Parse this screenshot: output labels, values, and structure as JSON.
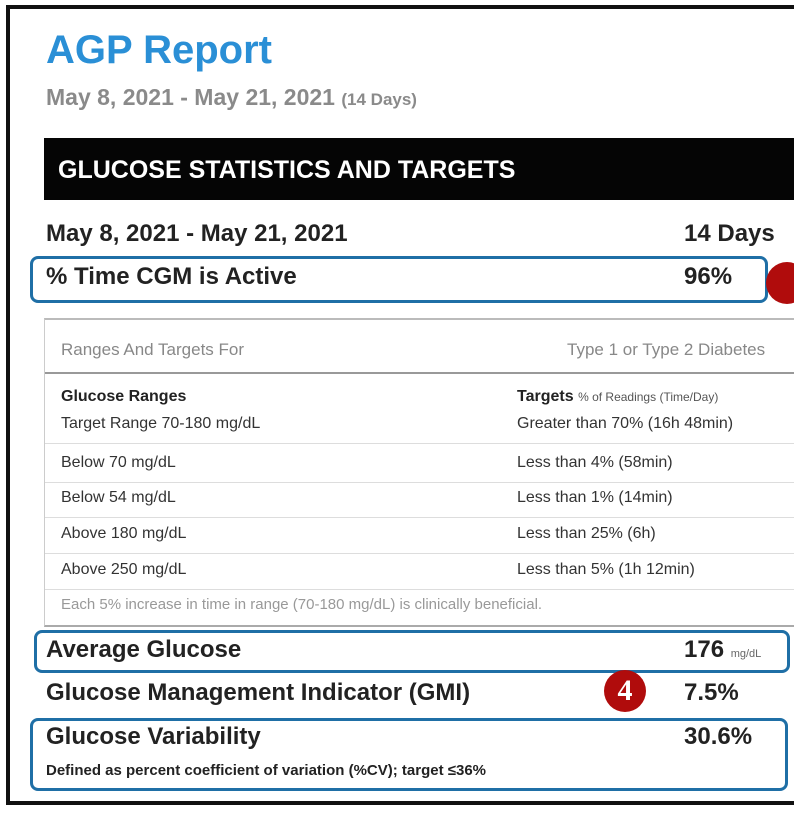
{
  "header": {
    "title": "AGP Report",
    "date_range": "May 8, 2021 - May 21, 2021",
    "days": "(14 Days)"
  },
  "section_title": "GLUCOSE STATISTICS AND TARGETS",
  "stats": {
    "date_range": "May 8, 2021 - May 21, 2021",
    "days": "14 Days",
    "cgm_label": "% Time CGM is Active",
    "cgm_value": "96%"
  },
  "targets": {
    "header_left": "Ranges And Targets For",
    "header_right": "Type 1 or Type 2 Diabetes",
    "col_ranges": "Glucose Ranges",
    "col_targets": "Targets",
    "col_targets_note": "% of Readings (Time/Day)",
    "rows": [
      [
        "Target Range 70-180 mg/dL",
        "Greater than 70% (16h 48min)"
      ],
      [
        "Below 70 mg/dL",
        "Less than 4% (58min)"
      ],
      [
        "Below 54 mg/dL",
        "Less than 1% (14min)"
      ],
      [
        "Above 180 mg/dL",
        "Less than 25% (6h)"
      ],
      [
        "Above 250 mg/dL",
        "Less than 5% (1h 12min)"
      ]
    ],
    "footnote": "Each 5% increase in time in range (70-180 mg/dL) is clinically beneficial."
  },
  "metrics": {
    "avg_label": "Average Glucose",
    "avg_value": "176",
    "avg_unit": "mg/dL",
    "gmi_label": "Glucose Management Indicator (GMI)",
    "gmi_value": "7.5%",
    "var_label": "Glucose Variability",
    "var_value": "30.6%",
    "var_note": "Defined as percent coefficient of variation (%CV); target ≤36%"
  },
  "marker": "4"
}
